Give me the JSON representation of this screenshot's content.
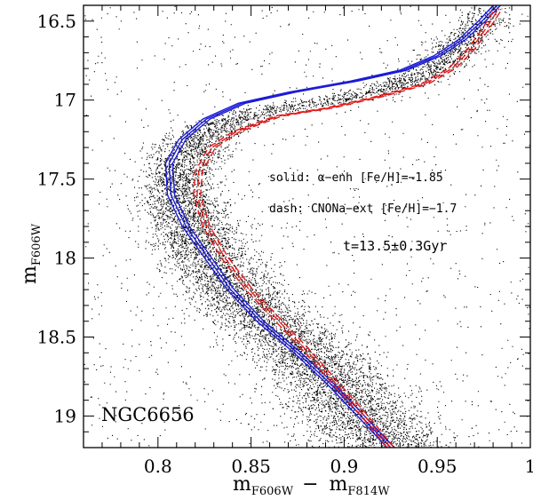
{
  "chart_data": {
    "type": "scatter",
    "title": "",
    "object_name": "NGC6656",
    "xlabel": {
      "main": "m",
      "sub1": "F606W",
      "minus": "−",
      "main2": "m",
      "sub2": "F814W"
    },
    "ylabel": {
      "main": "m",
      "sub": "F606W"
    },
    "xlim": [
      0.76,
      1.0
    ],
    "ylim": [
      19.2,
      16.4
    ],
    "y_inverted": true,
    "x_ticks": [
      0.8,
      0.85,
      0.9,
      0.95,
      1.0
    ],
    "x_tick_labels": [
      "0.8",
      "0.85",
      "0.9",
      "0.95",
      "1"
    ],
    "y_ticks": [
      16.5,
      17,
      17.5,
      18,
      18.5,
      19
    ],
    "y_tick_labels": [
      "16.5",
      "17",
      "17.5",
      "18",
      "18.5",
      "19"
    ],
    "annotations": {
      "solid": "solid: α−enh [Fe/H]=−1.85",
      "dash": "dash: CNONa−ext [Fe/H]=−1.7",
      "age": "t=13.5±0.3Gyr"
    },
    "series": [
      {
        "name": "solid: alpha-enh [Fe/H]=-1.85",
        "style": "solid",
        "color": "#1c1cd6",
        "points": [
          [
            0.925,
            19.2
          ],
          [
            0.909,
            19.0
          ],
          [
            0.893,
            18.8
          ],
          [
            0.875,
            18.6
          ],
          [
            0.855,
            18.4
          ],
          [
            0.839,
            18.2
          ],
          [
            0.827,
            18.0
          ],
          [
            0.815,
            17.8
          ],
          [
            0.807,
            17.6
          ],
          [
            0.806,
            17.4
          ],
          [
            0.813,
            17.25
          ],
          [
            0.826,
            17.12
          ],
          [
            0.845,
            17.02
          ],
          [
            0.872,
            16.95
          ],
          [
            0.905,
            16.88
          ],
          [
            0.932,
            16.81
          ],
          [
            0.95,
            16.72
          ],
          [
            0.963,
            16.62
          ],
          [
            0.974,
            16.5
          ],
          [
            0.982,
            16.4
          ]
        ]
      },
      {
        "name": "dash: CNONa-ext [Fe/H]=-1.7",
        "style": "dashed",
        "color": "#e31a1a",
        "points": [
          [
            0.925,
            19.2
          ],
          [
            0.911,
            19.0
          ],
          [
            0.896,
            18.8
          ],
          [
            0.881,
            18.6
          ],
          [
            0.865,
            18.4
          ],
          [
            0.849,
            18.2
          ],
          [
            0.836,
            18.0
          ],
          [
            0.826,
            17.8
          ],
          [
            0.821,
            17.6
          ],
          [
            0.822,
            17.45
          ],
          [
            0.829,
            17.3
          ],
          [
            0.842,
            17.2
          ],
          [
            0.865,
            17.1
          ],
          [
            0.892,
            17.05
          ],
          [
            0.918,
            16.98
          ],
          [
            0.943,
            16.9
          ],
          [
            0.958,
            16.8
          ],
          [
            0.968,
            16.68
          ],
          [
            0.976,
            16.55
          ],
          [
            0.983,
            16.42
          ]
        ]
      }
    ],
    "scatter_ridge": [
      [
        0.925,
        19.2
      ],
      [
        0.909,
        19.0
      ],
      [
        0.895,
        18.8
      ],
      [
        0.878,
        18.6
      ],
      [
        0.858,
        18.4
      ],
      [
        0.841,
        18.2
      ],
      [
        0.829,
        18.0
      ],
      [
        0.818,
        17.8
      ],
      [
        0.811,
        17.6
      ],
      [
        0.812,
        17.4
      ],
      [
        0.822,
        17.25
      ],
      [
        0.84,
        17.12
      ],
      [
        0.865,
        17.05
      ],
      [
        0.9,
        16.98
      ],
      [
        0.93,
        16.9
      ],
      [
        0.95,
        16.78
      ],
      [
        0.965,
        16.62
      ],
      [
        0.976,
        16.5
      ]
    ]
  }
}
